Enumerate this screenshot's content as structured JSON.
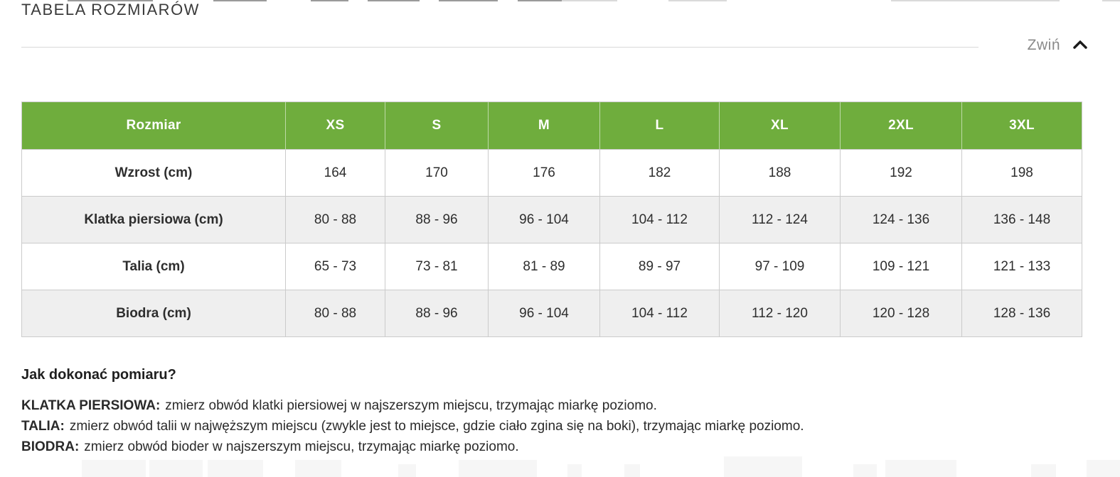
{
  "section": {
    "title": "TABELA ROZMIARÓW",
    "collapse_label": "Zwiń",
    "collapse_icon": "chevron-up-icon"
  },
  "table": {
    "header": [
      "Rozmiar",
      "XS",
      "S",
      "M",
      "L",
      "XL",
      "2XL",
      "3XL"
    ],
    "rows": [
      {
        "label": "Wzrost (cm)",
        "values": [
          "164",
          "170",
          "176",
          "182",
          "188",
          "192",
          "198"
        ]
      },
      {
        "label": "Klatka piersiowa (cm)",
        "values": [
          "80 - 88",
          "88 - 96",
          "96 - 104",
          "104 - 112",
          "112 - 124",
          "124 - 136",
          "136 - 148"
        ]
      },
      {
        "label": "Talia (cm)",
        "values": [
          "65 - 73",
          "73 - 81",
          "81 - 89",
          "89 - 97",
          "97 - 109",
          "109 - 121",
          "121 - 133"
        ]
      },
      {
        "label": "Biodra (cm)",
        "values": [
          "80 - 88",
          "88 - 96",
          "96 - 104",
          "104 - 112",
          "112 - 120",
          "120 - 128",
          "128 - 136"
        ]
      }
    ]
  },
  "measure_guide": {
    "heading": "Jak dokonać pomiaru?",
    "items": [
      {
        "label": "KLATKA PIERSIOWA:",
        "text": "zmierz obwód klatki piersiowej w najszerszym miejscu, trzymając miarkę poziomo."
      },
      {
        "label": "TALIA:",
        "text": "zmierz obwód talii w najwęższym miejscu (zwykle jest to miejsce, gdzie ciało zgina się na boki), trzymając miarkę poziomo."
      },
      {
        "label": "BIODRA:",
        "text": "zmierz obwód bioder w najszerszym miejscu, trzymając miarkę poziomo."
      }
    ]
  },
  "colors": {
    "header_green": "#6FAD3D",
    "row_alt_gray": "#EFEFEF",
    "border_gray": "#CBCBCB",
    "text_dark": "#2E2E2E",
    "muted_gray": "#8A8A8A"
  }
}
